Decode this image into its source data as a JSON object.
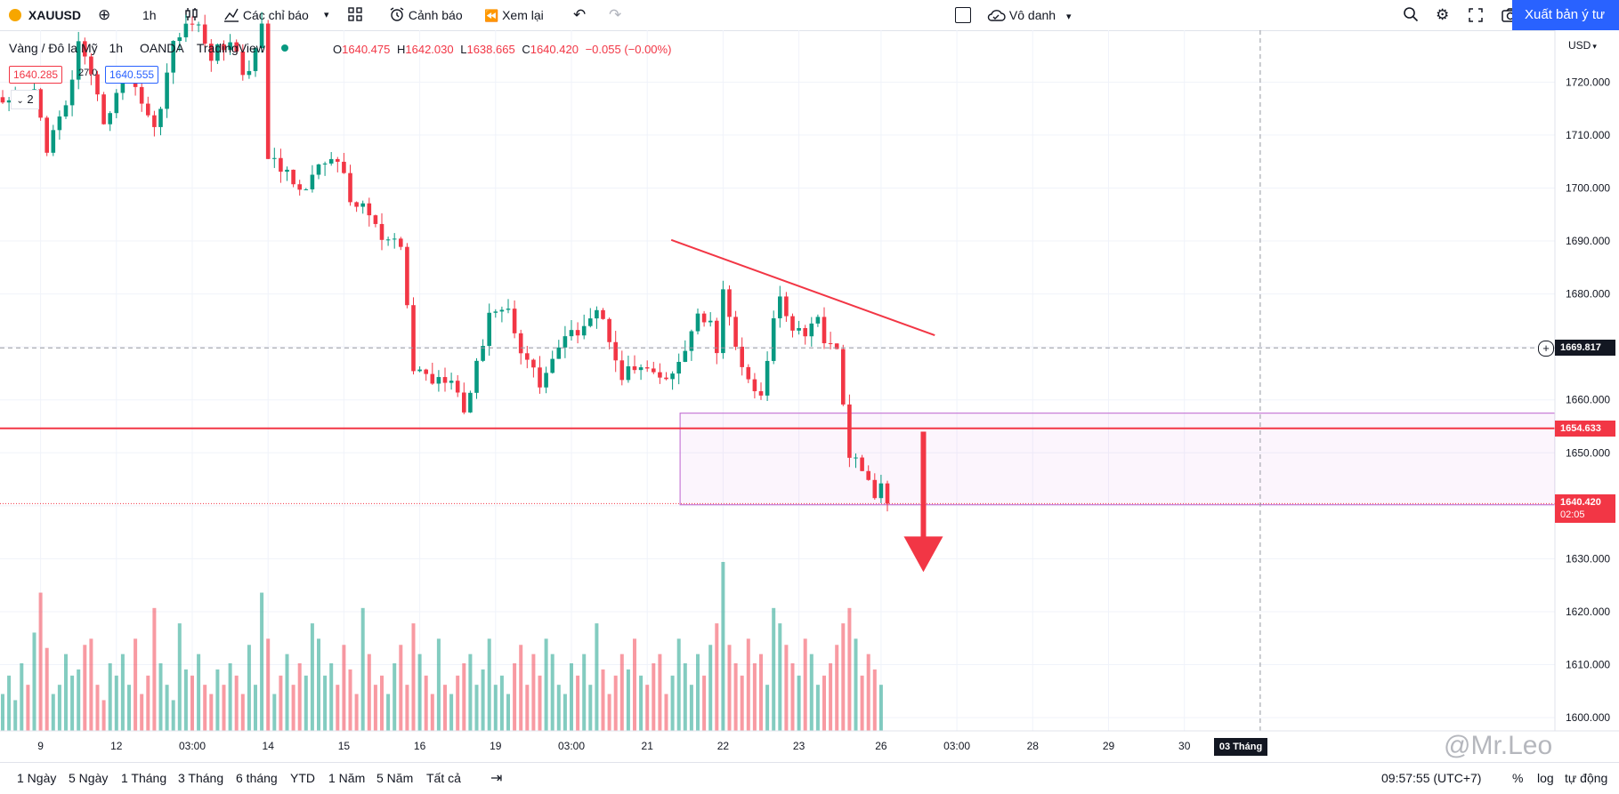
{
  "toolbar": {
    "symbol": "XAUUSD",
    "interval": "1h",
    "indicators_label": "Các chỉ báo",
    "alert_label": "Cảnh báo",
    "replay_label": "Xem lại",
    "layout_name": "Vô danh",
    "publish_label": "Xuất bản ý tư"
  },
  "legend": {
    "name": "Vàng / Đô la Mỹ",
    "interval": "1h",
    "broker": "OANDA",
    "source": "TradingView",
    "open_label": "O",
    "open": "1640.475",
    "high_label": "H",
    "high": "1642.030",
    "low_label": "L",
    "low": "1638.665",
    "close_label": "C",
    "close": "1640.420",
    "change": "−0.055 (−0.00%)",
    "bid": "1640.285",
    "spread": "27.0",
    "ask": "1640.555",
    "collapse_count": "2"
  },
  "price_scale": {
    "currency": "USD",
    "crosshair_price": "1669.817",
    "level_price": "1654.633",
    "last_price": "1640.420",
    "countdown": "02:05",
    "colors": {
      "accent": "#2962ff",
      "down": "#f23645",
      "up": "#089981",
      "zone": "#c77bd6"
    }
  },
  "chart_data": {
    "type": "candlestick",
    "symbol": "XAUUSD",
    "title": "Vàng / Đô la Mỹ · 1h · OANDA",
    "y_ticks": [
      1720,
      1710,
      1700,
      1690,
      1680,
      1670,
      1660,
      1650,
      1640,
      1630,
      1620,
      1610,
      1600
    ],
    "y_tick_labels": [
      "1720.000",
      "1710.000",
      "1700.000",
      "1690.000",
      "1680.000",
      "1670.000",
      "1660.000",
      "1650.000",
      "1640.000",
      "1630.000",
      "1620.000",
      "1610.000",
      "1600.000"
    ],
    "ylim": [
      1597.5,
      1729.8
    ],
    "x_ticks": [
      "9",
      "12",
      "03:00",
      "14",
      "15",
      "16",
      "19",
      "03:00",
      "21",
      "22",
      "23",
      "26",
      "03:00",
      "28",
      "29",
      "30"
    ],
    "x_tick_index": [
      6,
      18,
      30,
      42,
      54,
      66,
      78,
      90,
      102,
      114,
      126,
      139,
      151,
      163,
      175,
      187
    ],
    "crosshair_x_label": "03 Tháng",
    "crosshair_price": 1669.817,
    "last_price": 1640.42,
    "anchors": [
      [
        0,
        1715
      ],
      [
        5,
        1718
      ],
      [
        7,
        1708
      ],
      [
        10,
        1715
      ],
      [
        12,
        1727
      ],
      [
        16,
        1713
      ],
      [
        20,
        1722
      ],
      [
        24,
        1711
      ],
      [
        27,
        1727
      ],
      [
        30,
        1732
      ],
      [
        33,
        1725
      ],
      [
        36,
        1728
      ],
      [
        38,
        1722
      ],
      [
        40,
        1725
      ],
      [
        41,
        1732
      ],
      [
        42,
        1705
      ],
      [
        45,
        1703
      ],
      [
        48,
        1700
      ],
      [
        51,
        1705
      ],
      [
        53,
        1706
      ],
      [
        55,
        1697
      ],
      [
        57,
        1697
      ],
      [
        60,
        1690
      ],
      [
        62,
        1689
      ],
      [
        63,
        1689
      ],
      [
        65,
        1666
      ],
      [
        68,
        1664
      ],
      [
        71,
        1665
      ],
      [
        73,
        1658
      ],
      [
        75,
        1666
      ],
      [
        77,
        1677
      ],
      [
        80,
        1677
      ],
      [
        82,
        1670
      ],
      [
        85,
        1663
      ],
      [
        88,
        1670
      ],
      [
        90,
        1672
      ],
      [
        92,
        1675
      ],
      [
        94,
        1677
      ],
      [
        96,
        1672
      ],
      [
        98,
        1665
      ],
      [
        101,
        1666
      ],
      [
        103,
        1664
      ],
      [
        106,
        1664
      ],
      [
        108,
        1670
      ],
      [
        110,
        1675
      ],
      [
        112,
        1674
      ],
      [
        113,
        1670
      ],
      [
        114,
        1680
      ],
      [
        116,
        1670
      ],
      [
        118,
        1663
      ],
      [
        120,
        1660
      ],
      [
        122,
        1675
      ],
      [
        123,
        1680
      ],
      [
        125,
        1674
      ],
      [
        127,
        1673
      ],
      [
        129,
        1675
      ],
      [
        130,
        1672
      ],
      [
        132,
        1670
      ],
      [
        133,
        1660
      ],
      [
        134,
        1648
      ],
      [
        136,
        1648
      ],
      [
        137,
        1645
      ],
      [
        138,
        1641
      ],
      [
        139,
        1643
      ],
      [
        140,
        1640.4
      ]
    ],
    "volumes": [
      12,
      18,
      10,
      22,
      15,
      32,
      45,
      27,
      12,
      15,
      25,
      18,
      20,
      28,
      30,
      15,
      10,
      22,
      18,
      25,
      15,
      30,
      12,
      18,
      40,
      22,
      15,
      10,
      35,
      20,
      18,
      25,
      15,
      12,
      20,
      15,
      22,
      18,
      12,
      28,
      15,
      45,
      30,
      12,
      18,
      25,
      15,
      22,
      18,
      35,
      30,
      18,
      22,
      15,
      28,
      20,
      12,
      40,
      25,
      15,
      18,
      12,
      22,
      28,
      15,
      35,
      25,
      18,
      12,
      30,
      15,
      12,
      18,
      22,
      25,
      15,
      20,
      30,
      15,
      18,
      12,
      22,
      28,
      15,
      25,
      18,
      30,
      25,
      15,
      12,
      22,
      18,
      25,
      15,
      35,
      20,
      12,
      18,
      25,
      20,
      30,
      18,
      15,
      22,
      25,
      12,
      18,
      30,
      22,
      15,
      25,
      18,
      28,
      35,
      55,
      28,
      22,
      18,
      30,
      22,
      25,
      15,
      40,
      35,
      28,
      22,
      18,
      30,
      25,
      15,
      18,
      22,
      28,
      35,
      40,
      30,
      18,
      25,
      20,
      15
    ],
    "annotations": {
      "trendline": [
        [
          105.8,
          1690.2
        ],
        [
          147.5,
          1672.2
        ]
      ],
      "support_level": 1654.633,
      "zone": [
        107.2,
        1657.5,
        1640.2
      ],
      "arrow": [
        [
          145.7,
          1654.0
        ],
        [
          145.7,
          1627.5
        ]
      ]
    }
  },
  "time_ranges": [
    "1 Ngày",
    "5 Ngày",
    "1 Tháng",
    "3 Tháng",
    "6 tháng",
    "YTD",
    "1 Năm",
    "5 Năm",
    "Tất cả"
  ],
  "statusbar": {
    "time": "09:57:55 (UTC+7)",
    "percent": "%",
    "log": "log",
    "auto": "tự động"
  },
  "watermark": "@Mr.Leo"
}
